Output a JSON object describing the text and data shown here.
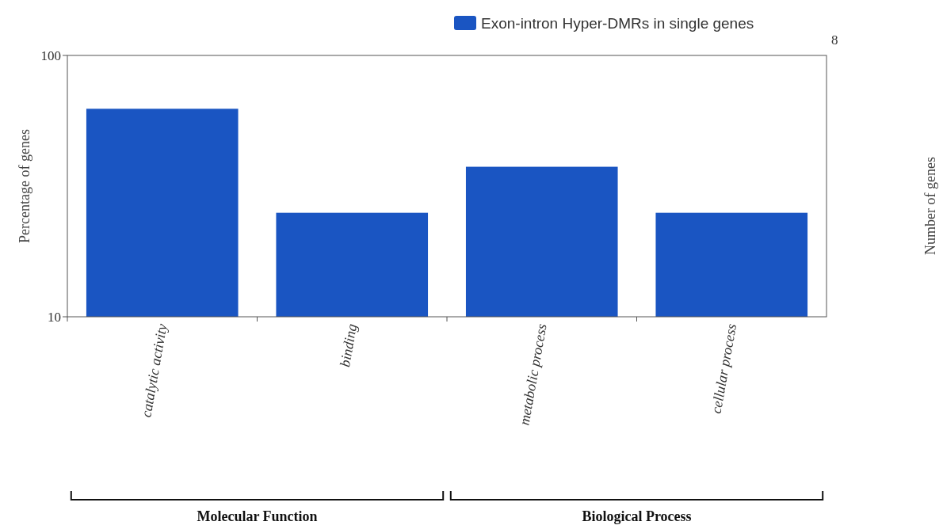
{
  "chart_data": {
    "type": "bar",
    "categories": [
      "catalytic activity",
      "binding",
      "metabolic process",
      "cellular process"
    ],
    "series": [
      {
        "name": "Exon-intron Hyper-DMRs in single genes",
        "color": "#1a55c2",
        "values": [
          62.5,
          25,
          37.5,
          25
        ]
      }
    ],
    "ylabel": "Percentage of genes",
    "ylim": [
      10,
      100
    ],
    "yticks": [
      10,
      100
    ],
    "log": true,
    "legend": "top right",
    "annotations": [
      "Molecular Function",
      "Biological Process",
      "8",
      "Number of genes"
    ]
  }
}
